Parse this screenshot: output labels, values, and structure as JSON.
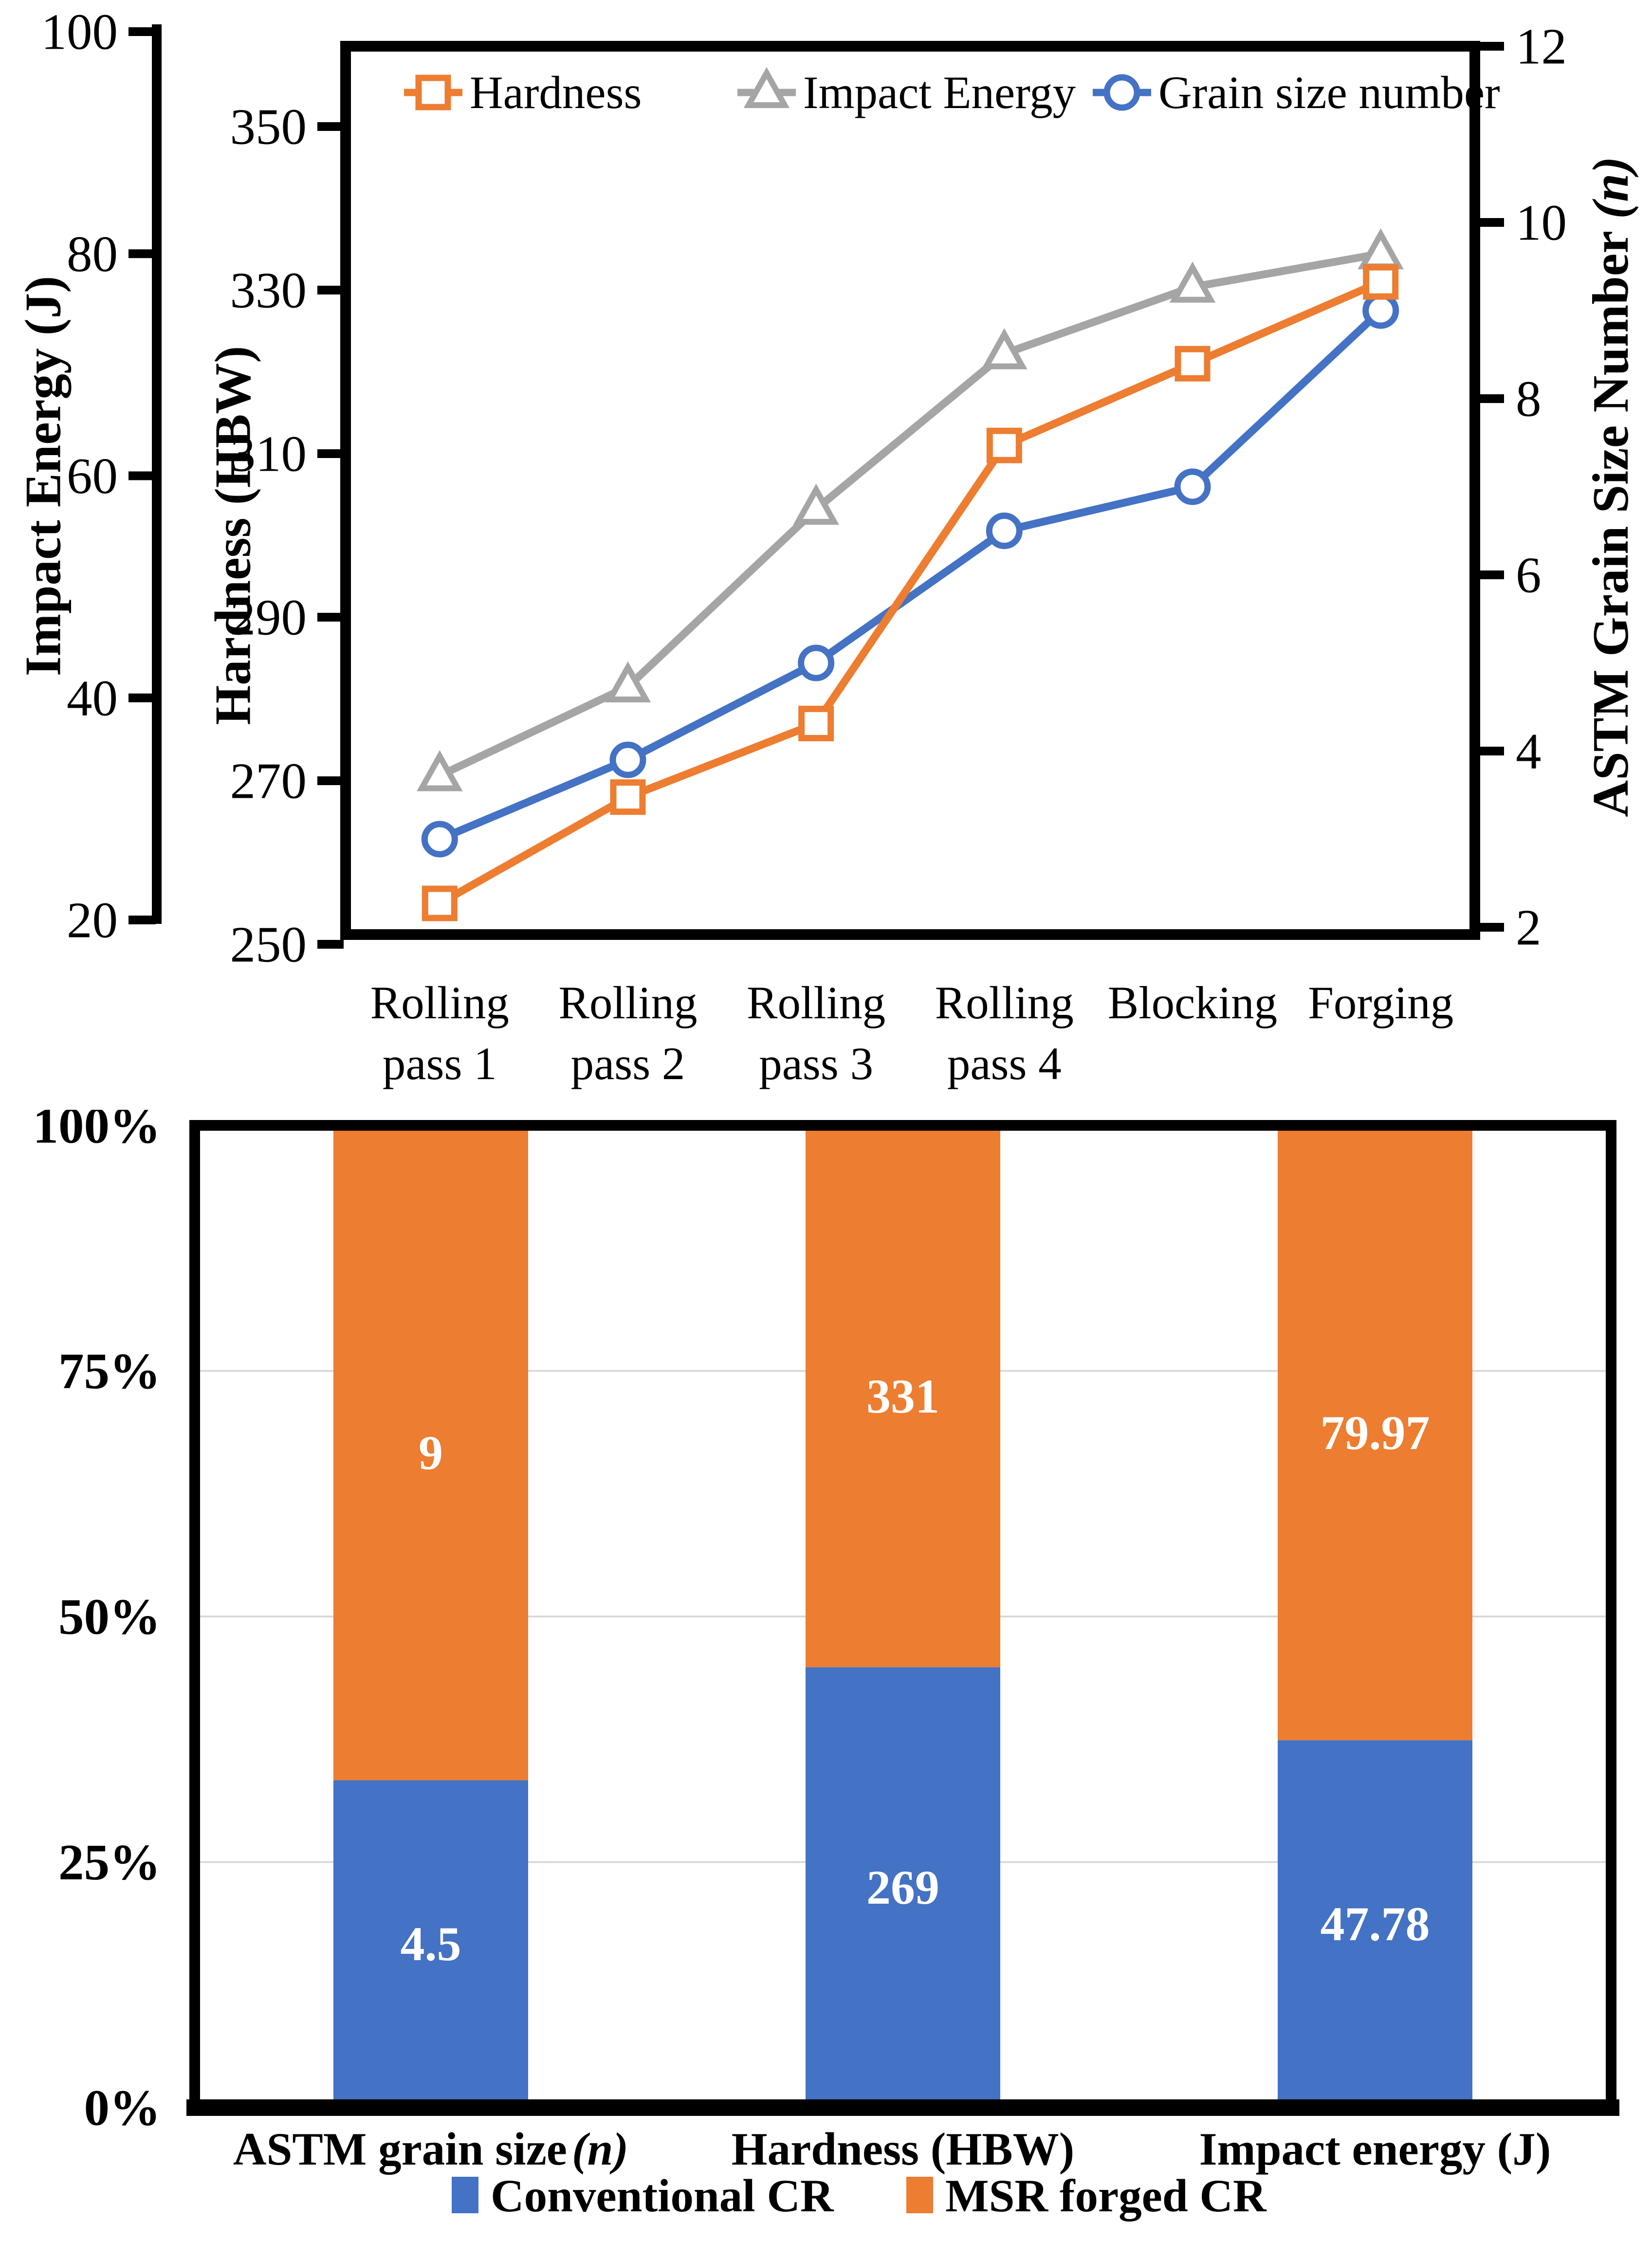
{
  "colors": {
    "orange": "#ED7D31",
    "gray": "#A5A5A5",
    "blue": "#4472C4",
    "gridline": "#D9D9D9",
    "axis_black": "#000000",
    "bar_label_white": "#FFFFFF"
  },
  "chart_data": [
    {
      "type": "line",
      "categories": [
        "Rolling pass 1",
        "Rolling pass 2",
        "Rolling pass 3",
        "Rolling pass 4",
        "Blocking",
        "Forging"
      ],
      "category_label_lines": [
        [
          "Rolling",
          "pass 1"
        ],
        [
          "Rolling",
          "pass 2"
        ],
        [
          "Rolling",
          "pass 3"
        ],
        [
          "Rolling",
          "pass 4"
        ],
        [
          "Blocking"
        ],
        [
          "Forging"
        ]
      ],
      "series": [
        {
          "name": "Hardness",
          "axis": "hardness",
          "marker": "square",
          "color": "#ED7D31",
          "values": [
            255,
            268,
            277,
            311,
            321,
            331
          ]
        },
        {
          "name": "Impact Energy",
          "axis": "impact",
          "marker": "triangle",
          "color": "#A5A5A5",
          "values": [
            33,
            41,
            57,
            71,
            77,
            80
          ]
        },
        {
          "name": "Grain size number",
          "axis": "grain",
          "marker": "circle",
          "color": "#4472C4",
          "values": [
            3,
            3.9,
            5,
            6.5,
            7,
            9
          ]
        }
      ],
      "axes": {
        "impact": {
          "title": "Impact Energy (J)",
          "min": 20,
          "max": 100,
          "ticks": [
            100,
            80,
            60,
            40,
            20
          ],
          "side": "outer-left"
        },
        "hardness": {
          "title": "Hardness (HBW)",
          "min": 250,
          "max": 350,
          "ticks": [
            350,
            330,
            310,
            290,
            270,
            250
          ],
          "side": "inner-left"
        },
        "grain": {
          "title_prefix": "ASTM Grain Size Number ",
          "title_italic": "(n)",
          "min": 2,
          "max": 12,
          "ticks": [
            12,
            10,
            8,
            6,
            4,
            2
          ],
          "side": "right"
        }
      },
      "legend": [
        {
          "label": "Hardness"
        },
        {
          "label": "Impact Energy"
        },
        {
          "label": "Grain size number"
        }
      ],
      "grid": false
    },
    {
      "type": "stacked-bar-100",
      "categories": [
        {
          "label": "ASTM grain size",
          "italic": "(n)"
        },
        {
          "label": "Hardness (HBW)",
          "italic": ""
        },
        {
          "label": "Impact energy (J)",
          "italic": ""
        }
      ],
      "series": [
        {
          "name": "Conventional CR",
          "color": "#4472C4",
          "values": [
            4.5,
            269,
            47.78
          ],
          "labels": [
            "4.5",
            "269",
            "47.78"
          ]
        },
        {
          "name": "MSR forged CR",
          "color": "#ED7D31",
          "values": [
            9,
            331,
            79.97
          ],
          "labels": [
            "9",
            "331",
            "79.97"
          ]
        }
      ],
      "y_axis": {
        "min": 0,
        "max": 100,
        "tick_labels": [
          "0%",
          "25%",
          "50%",
          "75%",
          "100%"
        ],
        "tick_values": [
          0,
          25,
          50,
          75,
          100
        ]
      },
      "legend": [
        {
          "label": "Conventional CR",
          "color": "#4472C4"
        },
        {
          "label": "MSR forged CR",
          "color": "#ED7D31"
        }
      ],
      "grid": true,
      "gridline_color": "#D9D9D9"
    }
  ]
}
